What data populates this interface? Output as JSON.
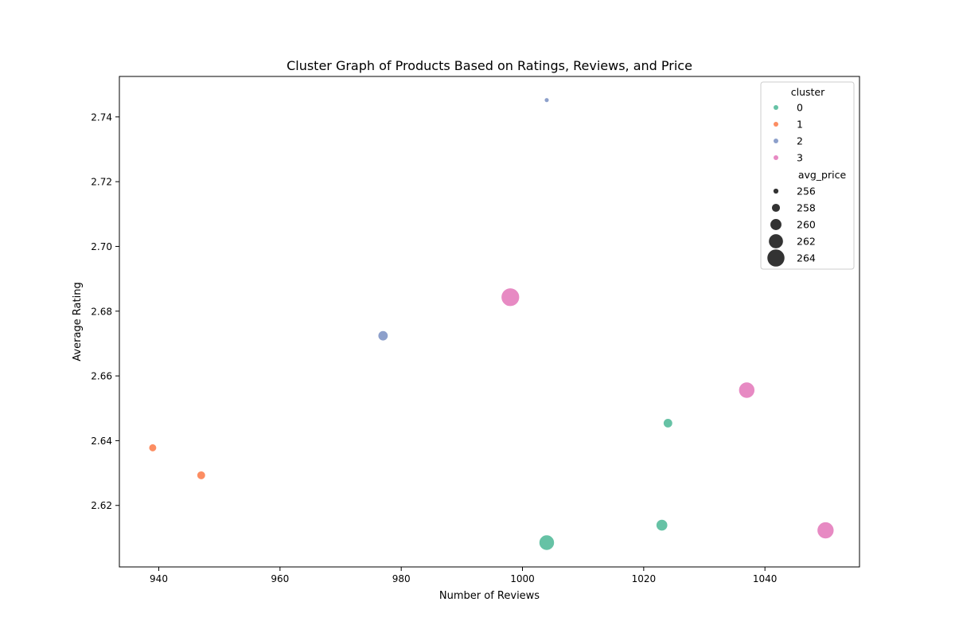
{
  "chart_data": {
    "type": "scatter",
    "title": "Cluster Graph of Products Based on Ratings, Reviews, and Price",
    "xlabel": "Number of Reviews",
    "ylabel": "Average Rating",
    "xlim": [
      933.5,
      1055.6
    ],
    "ylim": [
      2.601,
      2.7525
    ],
    "xticks": [
      940,
      960,
      980,
      1000,
      1020,
      1040
    ],
    "yticks": [
      2.62,
      2.64,
      2.66,
      2.68,
      2.7,
      2.72,
      2.74
    ],
    "grid": false,
    "legend_position": "upper-right",
    "hue_title": "cluster",
    "size_title": "avg_price",
    "clusters": [
      {
        "label": "0",
        "color": "#66c2a5"
      },
      {
        "label": "1",
        "color": "#fc8d62"
      },
      {
        "label": "2",
        "color": "#8da0cb"
      },
      {
        "label": "3",
        "color": "#e78ac3"
      }
    ],
    "size_legend": [
      {
        "label": "256",
        "value": 256
      },
      {
        "label": "258",
        "value": 258
      },
      {
        "label": "260",
        "value": 260
      },
      {
        "label": "262",
        "value": 262
      },
      {
        "label": "264",
        "value": 264
      }
    ],
    "points": [
      {
        "x": 1004,
        "y": 2.7452,
        "cluster": 2,
        "avg_price": 255.5
      },
      {
        "x": 998,
        "y": 2.6843,
        "cluster": 3,
        "avg_price": 264.5
      },
      {
        "x": 977,
        "y": 2.6724,
        "cluster": 2,
        "avg_price": 259.0
      },
      {
        "x": 1037,
        "y": 2.6556,
        "cluster": 3,
        "avg_price": 263.0
      },
      {
        "x": 1024,
        "y": 2.6454,
        "cluster": 0,
        "avg_price": 258.5
      },
      {
        "x": 939,
        "y": 2.6378,
        "cluster": 1,
        "avg_price": 257.5
      },
      {
        "x": 947,
        "y": 2.6293,
        "cluster": 1,
        "avg_price": 258.0
      },
      {
        "x": 1023,
        "y": 2.6139,
        "cluster": 0,
        "avg_price": 260.0
      },
      {
        "x": 1050,
        "y": 2.6123,
        "cluster": 3,
        "avg_price": 263.5
      },
      {
        "x": 1004,
        "y": 2.6085,
        "cluster": 0,
        "avg_price": 262.5
      }
    ]
  }
}
